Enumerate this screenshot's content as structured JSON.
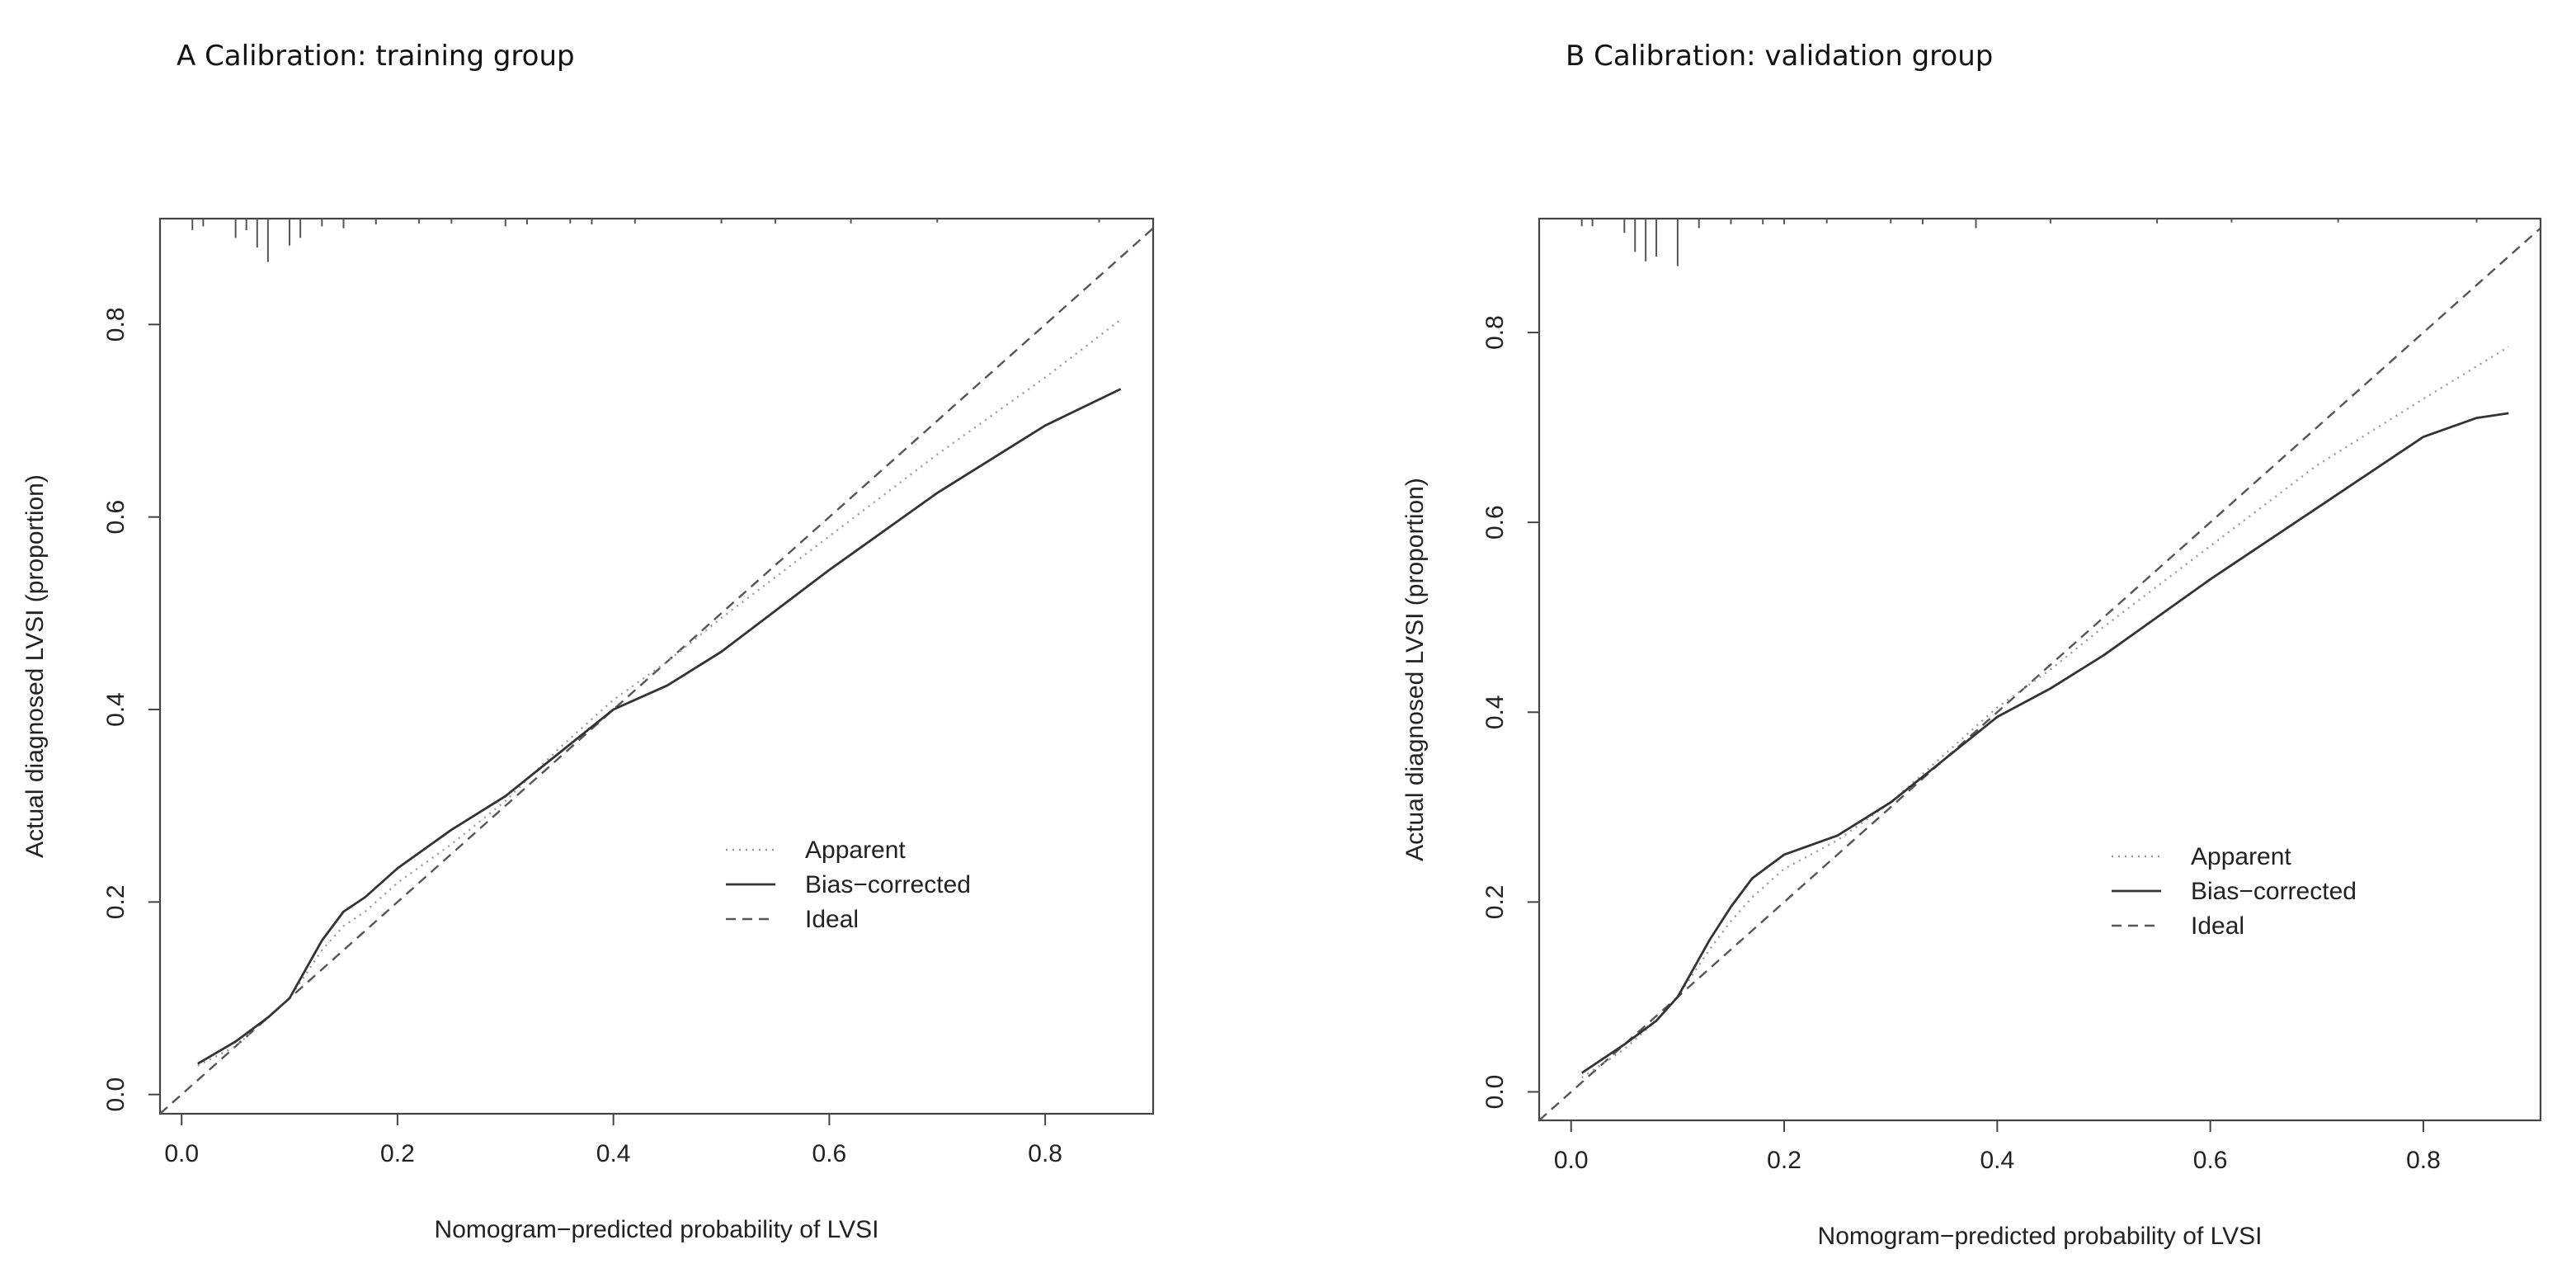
{
  "chart_data": [
    {
      "type": "line",
      "title": "A Calibration: training group",
      "xlabel": "Nomogram−predicted probability of LVSI",
      "ylabel": "Actual diagnosed LVSI (proportion)",
      "xlim": [
        -0.02,
        0.9
      ],
      "ylim": [
        -0.02,
        0.91
      ],
      "xticks": [
        0.0,
        0.2,
        0.4,
        0.6,
        0.8
      ],
      "xtick_labels": [
        "0.0",
        "0.2",
        "0.4",
        "0.6",
        "0.8"
      ],
      "yticks": [
        0.0,
        0.2,
        0.4,
        0.6,
        0.8
      ],
      "ytick_labels": [
        "0.0",
        "0.2",
        "0.4",
        "0.6",
        "0.8"
      ],
      "legend": {
        "position": "bottom-right",
        "entries": [
          {
            "label": "Apparent",
            "style": "dotted",
            "color": "#9a9a9a"
          },
          {
            "label": "Bias−corrected",
            "style": "solid",
            "color": "#333333"
          },
          {
            "label": "Ideal",
            "style": "dashed",
            "color": "#555555"
          }
        ]
      },
      "rug": {
        "x": [
          0.01,
          0.02,
          0.05,
          0.06,
          0.07,
          0.08,
          0.1,
          0.11,
          0.13,
          0.15,
          0.18,
          0.22,
          0.25,
          0.3,
          0.32,
          0.36,
          0.38,
          0.42,
          0.5,
          0.55,
          0.62,
          0.7,
          0.85
        ],
        "len": [
          0.012,
          0.008,
          0.02,
          0.012,
          0.03,
          0.045,
          0.028,
          0.02,
          0.008,
          0.01,
          0.006,
          0.005,
          0.005,
          0.008,
          0.006,
          0.005,
          0.006,
          0.005,
          0.005,
          0.005,
          0.005,
          0.004,
          0.004
        ]
      },
      "series": [
        {
          "name": "Ideal",
          "style": "dashed",
          "x": [
            -0.02,
            0.9
          ],
          "y": [
            -0.02,
            0.9
          ]
        },
        {
          "name": "Apparent",
          "style": "dotted",
          "x": [
            0.015,
            0.05,
            0.08,
            0.1,
            0.13,
            0.15,
            0.17,
            0.2,
            0.25,
            0.3,
            0.35,
            0.4,
            0.45,
            0.5,
            0.6,
            0.7,
            0.8,
            0.87
          ],
          "y": [
            0.03,
            0.05,
            0.08,
            0.1,
            0.15,
            0.175,
            0.19,
            0.22,
            0.26,
            0.305,
            0.36,
            0.41,
            0.45,
            0.495,
            0.58,
            0.665,
            0.745,
            0.805
          ]
        },
        {
          "name": "Bias−corrected",
          "style": "solid",
          "x": [
            0.015,
            0.05,
            0.08,
            0.1,
            0.13,
            0.15,
            0.17,
            0.2,
            0.25,
            0.3,
            0.35,
            0.4,
            0.45,
            0.5,
            0.6,
            0.7,
            0.8,
            0.87
          ],
          "y": [
            0.032,
            0.055,
            0.08,
            0.1,
            0.16,
            0.19,
            0.205,
            0.235,
            0.275,
            0.31,
            0.355,
            0.4,
            0.425,
            0.46,
            0.545,
            0.625,
            0.695,
            0.733
          ]
        }
      ]
    },
    {
      "type": "line",
      "title": "B Calibration: validation group",
      "xlabel": "Nomogram−predicted probability of LVSI",
      "ylabel": "Actual diagnosed LVSI (proportion)",
      "xlim": [
        -0.03,
        0.91
      ],
      "ylim": [
        -0.03,
        0.92
      ],
      "xticks": [
        0.0,
        0.2,
        0.4,
        0.6,
        0.8
      ],
      "xtick_labels": [
        "0.0",
        "0.2",
        "0.4",
        "0.6",
        "0.8"
      ],
      "yticks": [
        0.0,
        0.2,
        0.4,
        0.6,
        0.8
      ],
      "ytick_labels": [
        "0.0",
        "0.2",
        "0.4",
        "0.6",
        "0.8"
      ],
      "legend": {
        "position": "bottom-right",
        "entries": [
          {
            "label": "Apparent",
            "style": "dotted",
            "color": "#9a9a9a"
          },
          {
            "label": "Bias−corrected",
            "style": "solid",
            "color": "#333333"
          },
          {
            "label": "Ideal",
            "style": "dashed",
            "color": "#555555"
          }
        ]
      },
      "rug": {
        "x": [
          0.01,
          0.02,
          0.05,
          0.06,
          0.07,
          0.08,
          0.1,
          0.12,
          0.15,
          0.18,
          0.2,
          0.24,
          0.3,
          0.33,
          0.38,
          0.45,
          0.55,
          0.62,
          0.72,
          0.85
        ],
        "len": [
          0.008,
          0.008,
          0.015,
          0.035,
          0.045,
          0.04,
          0.05,
          0.01,
          0.006,
          0.006,
          0.006,
          0.005,
          0.005,
          0.006,
          0.01,
          0.005,
          0.005,
          0.004,
          0.004,
          0.004
        ]
      },
      "series": [
        {
          "name": "Ideal",
          "style": "dashed",
          "x": [
            -0.03,
            0.91
          ],
          "y": [
            -0.03,
            0.91
          ]
        },
        {
          "name": "Apparent",
          "style": "dotted",
          "x": [
            0.01,
            0.05,
            0.08,
            0.1,
            0.13,
            0.15,
            0.17,
            0.2,
            0.25,
            0.3,
            0.35,
            0.4,
            0.45,
            0.5,
            0.6,
            0.7,
            0.8,
            0.88
          ],
          "y": [
            0.015,
            0.045,
            0.075,
            0.1,
            0.15,
            0.18,
            0.205,
            0.235,
            0.265,
            0.305,
            0.355,
            0.405,
            0.445,
            0.49,
            0.575,
            0.66,
            0.73,
            0.785
          ]
        },
        {
          "name": "Bias−corrected",
          "style": "solid",
          "x": [
            0.01,
            0.05,
            0.08,
            0.1,
            0.13,
            0.15,
            0.17,
            0.2,
            0.25,
            0.3,
            0.35,
            0.4,
            0.45,
            0.5,
            0.6,
            0.7,
            0.8,
            0.85,
            0.88
          ],
          "y": [
            0.02,
            0.05,
            0.075,
            0.1,
            0.16,
            0.195,
            0.225,
            0.25,
            0.27,
            0.305,
            0.35,
            0.395,
            0.425,
            0.46,
            0.54,
            0.615,
            0.69,
            0.71,
            0.715
          ]
        }
      ]
    }
  ]
}
